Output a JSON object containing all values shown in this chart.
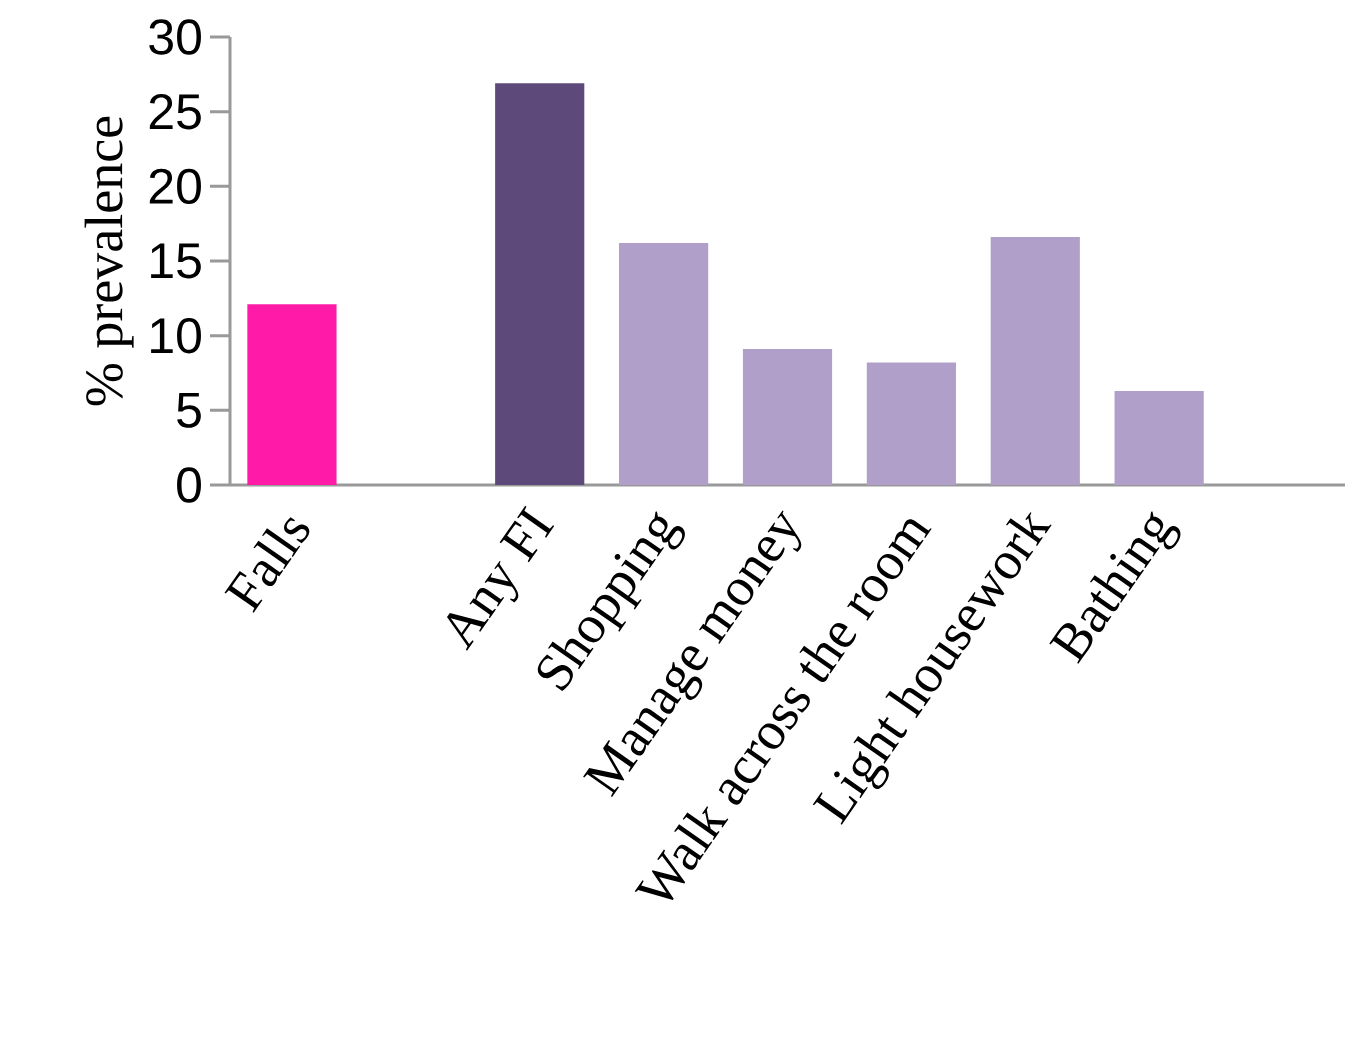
{
  "chart_data": {
    "type": "bar",
    "ylabel": "% prevalence",
    "categories": [
      "Falls",
      null,
      "Any FI",
      "Shopping",
      "Manage money",
      "Walk across the room",
      "Light housework",
      "Bathing",
      null
    ],
    "values": [
      12.1,
      null,
      26.9,
      16.2,
      9.1,
      8.2,
      16.6,
      6.3,
      null
    ],
    "colors": [
      "#ff1aa8",
      null,
      "#5e4a7a",
      "#b09fc8",
      "#b09fc8",
      "#b09fc8",
      "#b09fc8",
      "#b09fc8",
      null
    ],
    "ylim": [
      0,
      30
    ],
    "yticks": [
      0,
      5,
      10,
      15,
      20,
      25,
      30
    ]
  }
}
